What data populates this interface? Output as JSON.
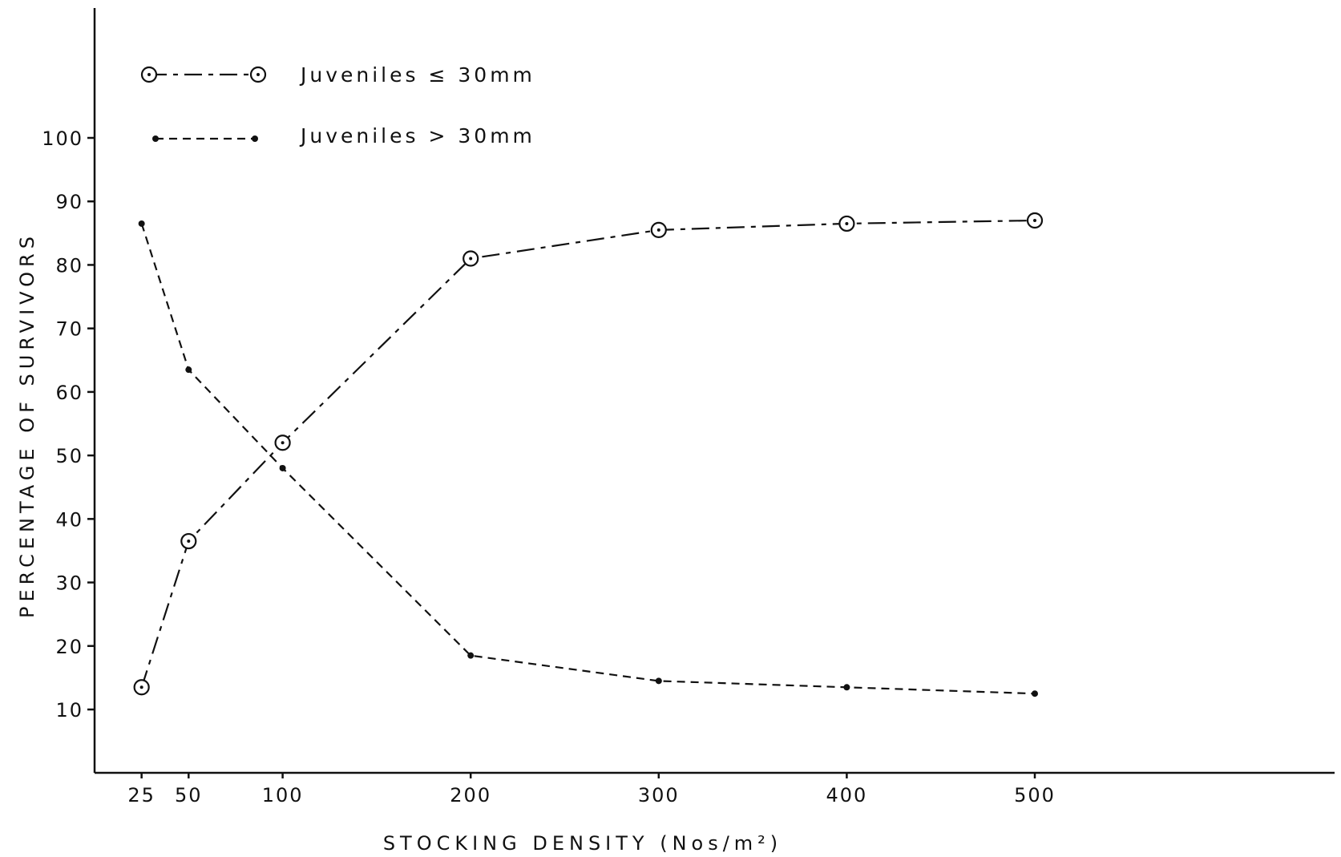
{
  "chart_data": {
    "type": "line",
    "title": "",
    "xlabel": "STOCKING DENSITY (Nos/m²)",
    "ylabel": "PERCENTAGE OF SURVIVORS",
    "x": [
      25,
      50,
      100,
      200,
      300,
      400,
      500
    ],
    "x_tick_labels": [
      "25",
      "50",
      "100",
      "200",
      "300",
      "400",
      "500"
    ],
    "y_tick_labels": [
      "10",
      "20",
      "30",
      "40",
      "50",
      "60",
      "70",
      "80",
      "90",
      "100"
    ],
    "xlim": [
      0,
      630
    ],
    "ylim": [
      0,
      100
    ],
    "grid": false,
    "legend_position": "top-left",
    "series": [
      {
        "name": "Juveniles ≤ 30mm",
        "marker": "open-circle",
        "line_style": "dash-dot",
        "values": [
          13.5,
          36.5,
          52,
          81,
          85.5,
          86.5,
          87
        ]
      },
      {
        "name": "Juveniles > 30mm",
        "marker": "filled-dot",
        "line_style": "dashed",
        "values": [
          86.5,
          63.5,
          48,
          18.5,
          14.5,
          13.5,
          12.5
        ]
      }
    ]
  }
}
